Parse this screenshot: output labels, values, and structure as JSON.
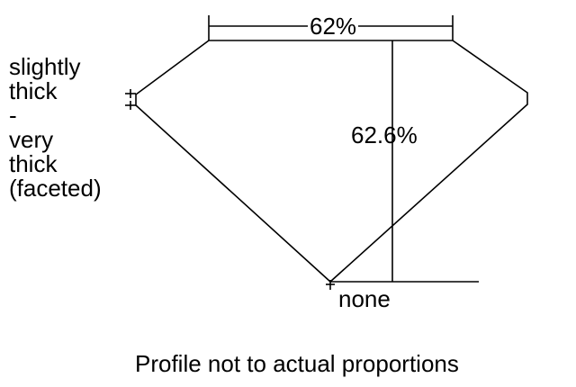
{
  "diagram": {
    "table_label": "62%",
    "depth_label": "62.6%",
    "culet_label": "none",
    "girdle_label_lines": [
      "slightly",
      "thick",
      "-",
      "very",
      "thick",
      "(faceted)"
    ],
    "footnote": "Profile not to actual proportions",
    "line_color": "#000000"
  }
}
